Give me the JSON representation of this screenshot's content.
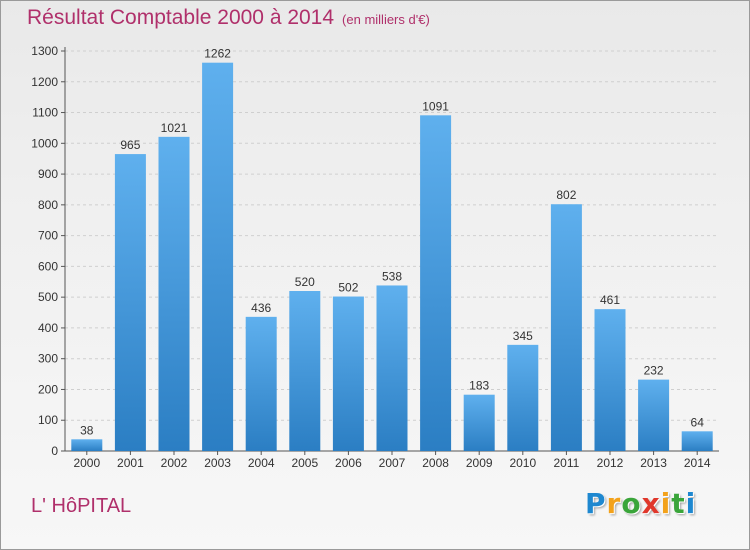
{
  "chart_data": {
    "type": "bar",
    "title": "Résultat Comptable 2000 à 2014",
    "subtitle": "(en milliers d'€)",
    "categories": [
      "2000",
      "2001",
      "2002",
      "2003",
      "2004",
      "2005",
      "2006",
      "2007",
      "2008",
      "2009",
      "2010",
      "2011",
      "2012",
      "2013",
      "2014"
    ],
    "values": [
      38,
      965,
      1021,
      1262,
      436,
      520,
      502,
      538,
      1091,
      183,
      345,
      802,
      461,
      232,
      64
    ],
    "ylim": [
      0,
      1300
    ],
    "yticks": [
      0,
      100,
      200,
      300,
      400,
      500,
      600,
      700,
      800,
      900,
      1000,
      1100,
      1200,
      1300
    ],
    "grid": true,
    "bar_color_top": "#5fb0ee",
    "bar_color_bottom": "#2b7ec3"
  },
  "footer": {
    "commune": "L' HôPITAL"
  },
  "logo": {
    "letters": [
      "P",
      "r",
      "o",
      "x",
      "i",
      "t",
      "i"
    ],
    "colors": [
      "#1e88d0",
      "#f3a21b",
      "#3aa53a",
      "#e0372b",
      "#f3a21b",
      "#3aa53a",
      "#1e88d0"
    ]
  }
}
